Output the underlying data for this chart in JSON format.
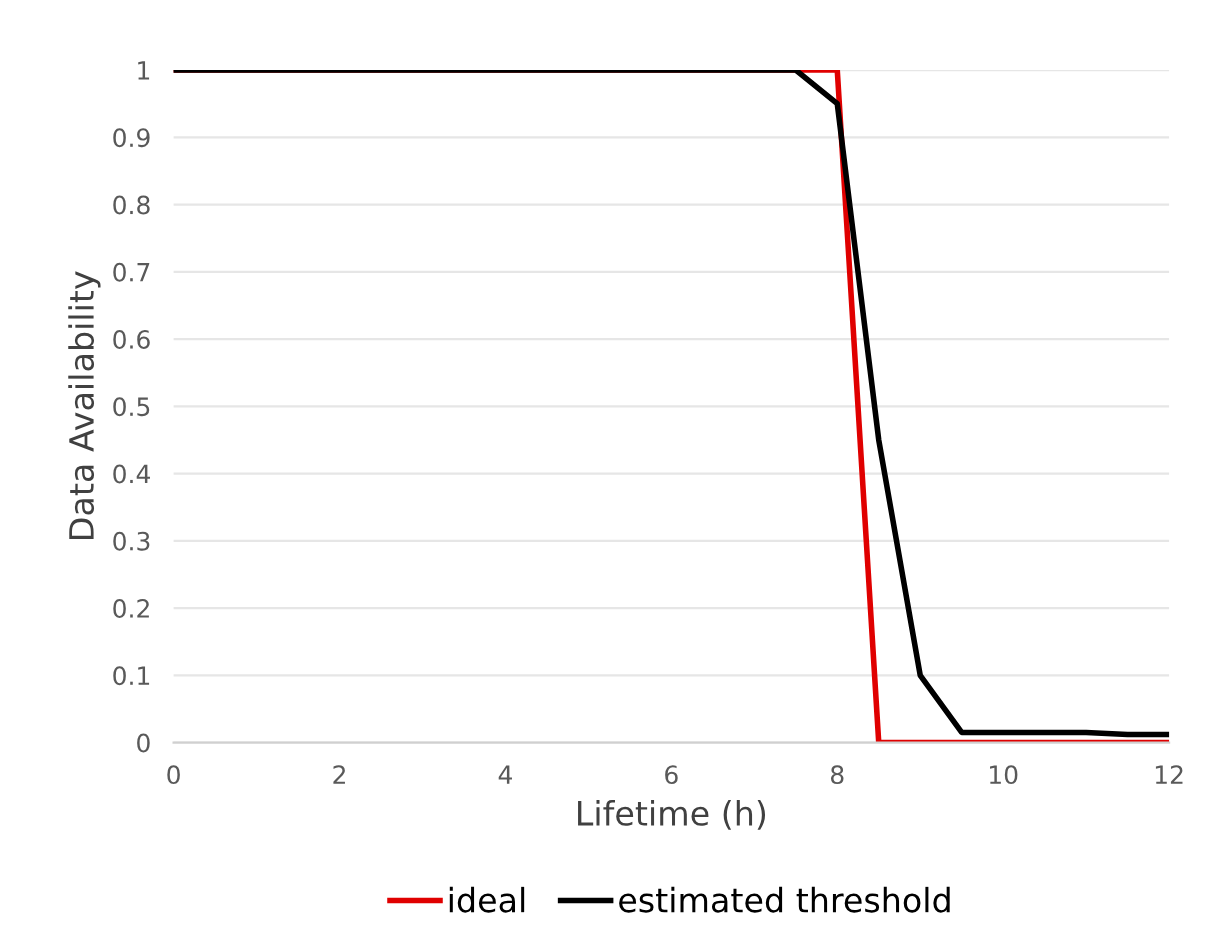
{
  "chart_data": {
    "type": "line",
    "xlabel": "Lifetime (h)",
    "ylabel": "Data Availability",
    "xlim": [
      0,
      12
    ],
    "xticks": [
      0,
      2,
      4,
      6,
      8,
      10,
      12
    ],
    "ylim": [
      0,
      1
    ],
    "yticks": [
      0,
      0.1,
      0.2,
      0.3,
      0.4,
      0.5,
      0.6,
      0.7,
      0.8,
      0.9,
      1
    ],
    "grid": "y",
    "legend": "bottom",
    "marker": "none",
    "line_style": "solid",
    "series": [
      {
        "name": "ideal",
        "color": "#e00000",
        "x": [
          0,
          8,
          8.5,
          12
        ],
        "values": [
          1,
          1,
          0,
          0
        ]
      },
      {
        "name": "estimated threshold",
        "color": "#000000",
        "x": [
          0,
          7.5,
          8,
          8.5,
          9,
          9.5,
          11,
          11.5,
          12
        ],
        "values": [
          1,
          1,
          0.95,
          0.45,
          0.1,
          0.015,
          0.015,
          0.012,
          0.012
        ]
      }
    ]
  }
}
